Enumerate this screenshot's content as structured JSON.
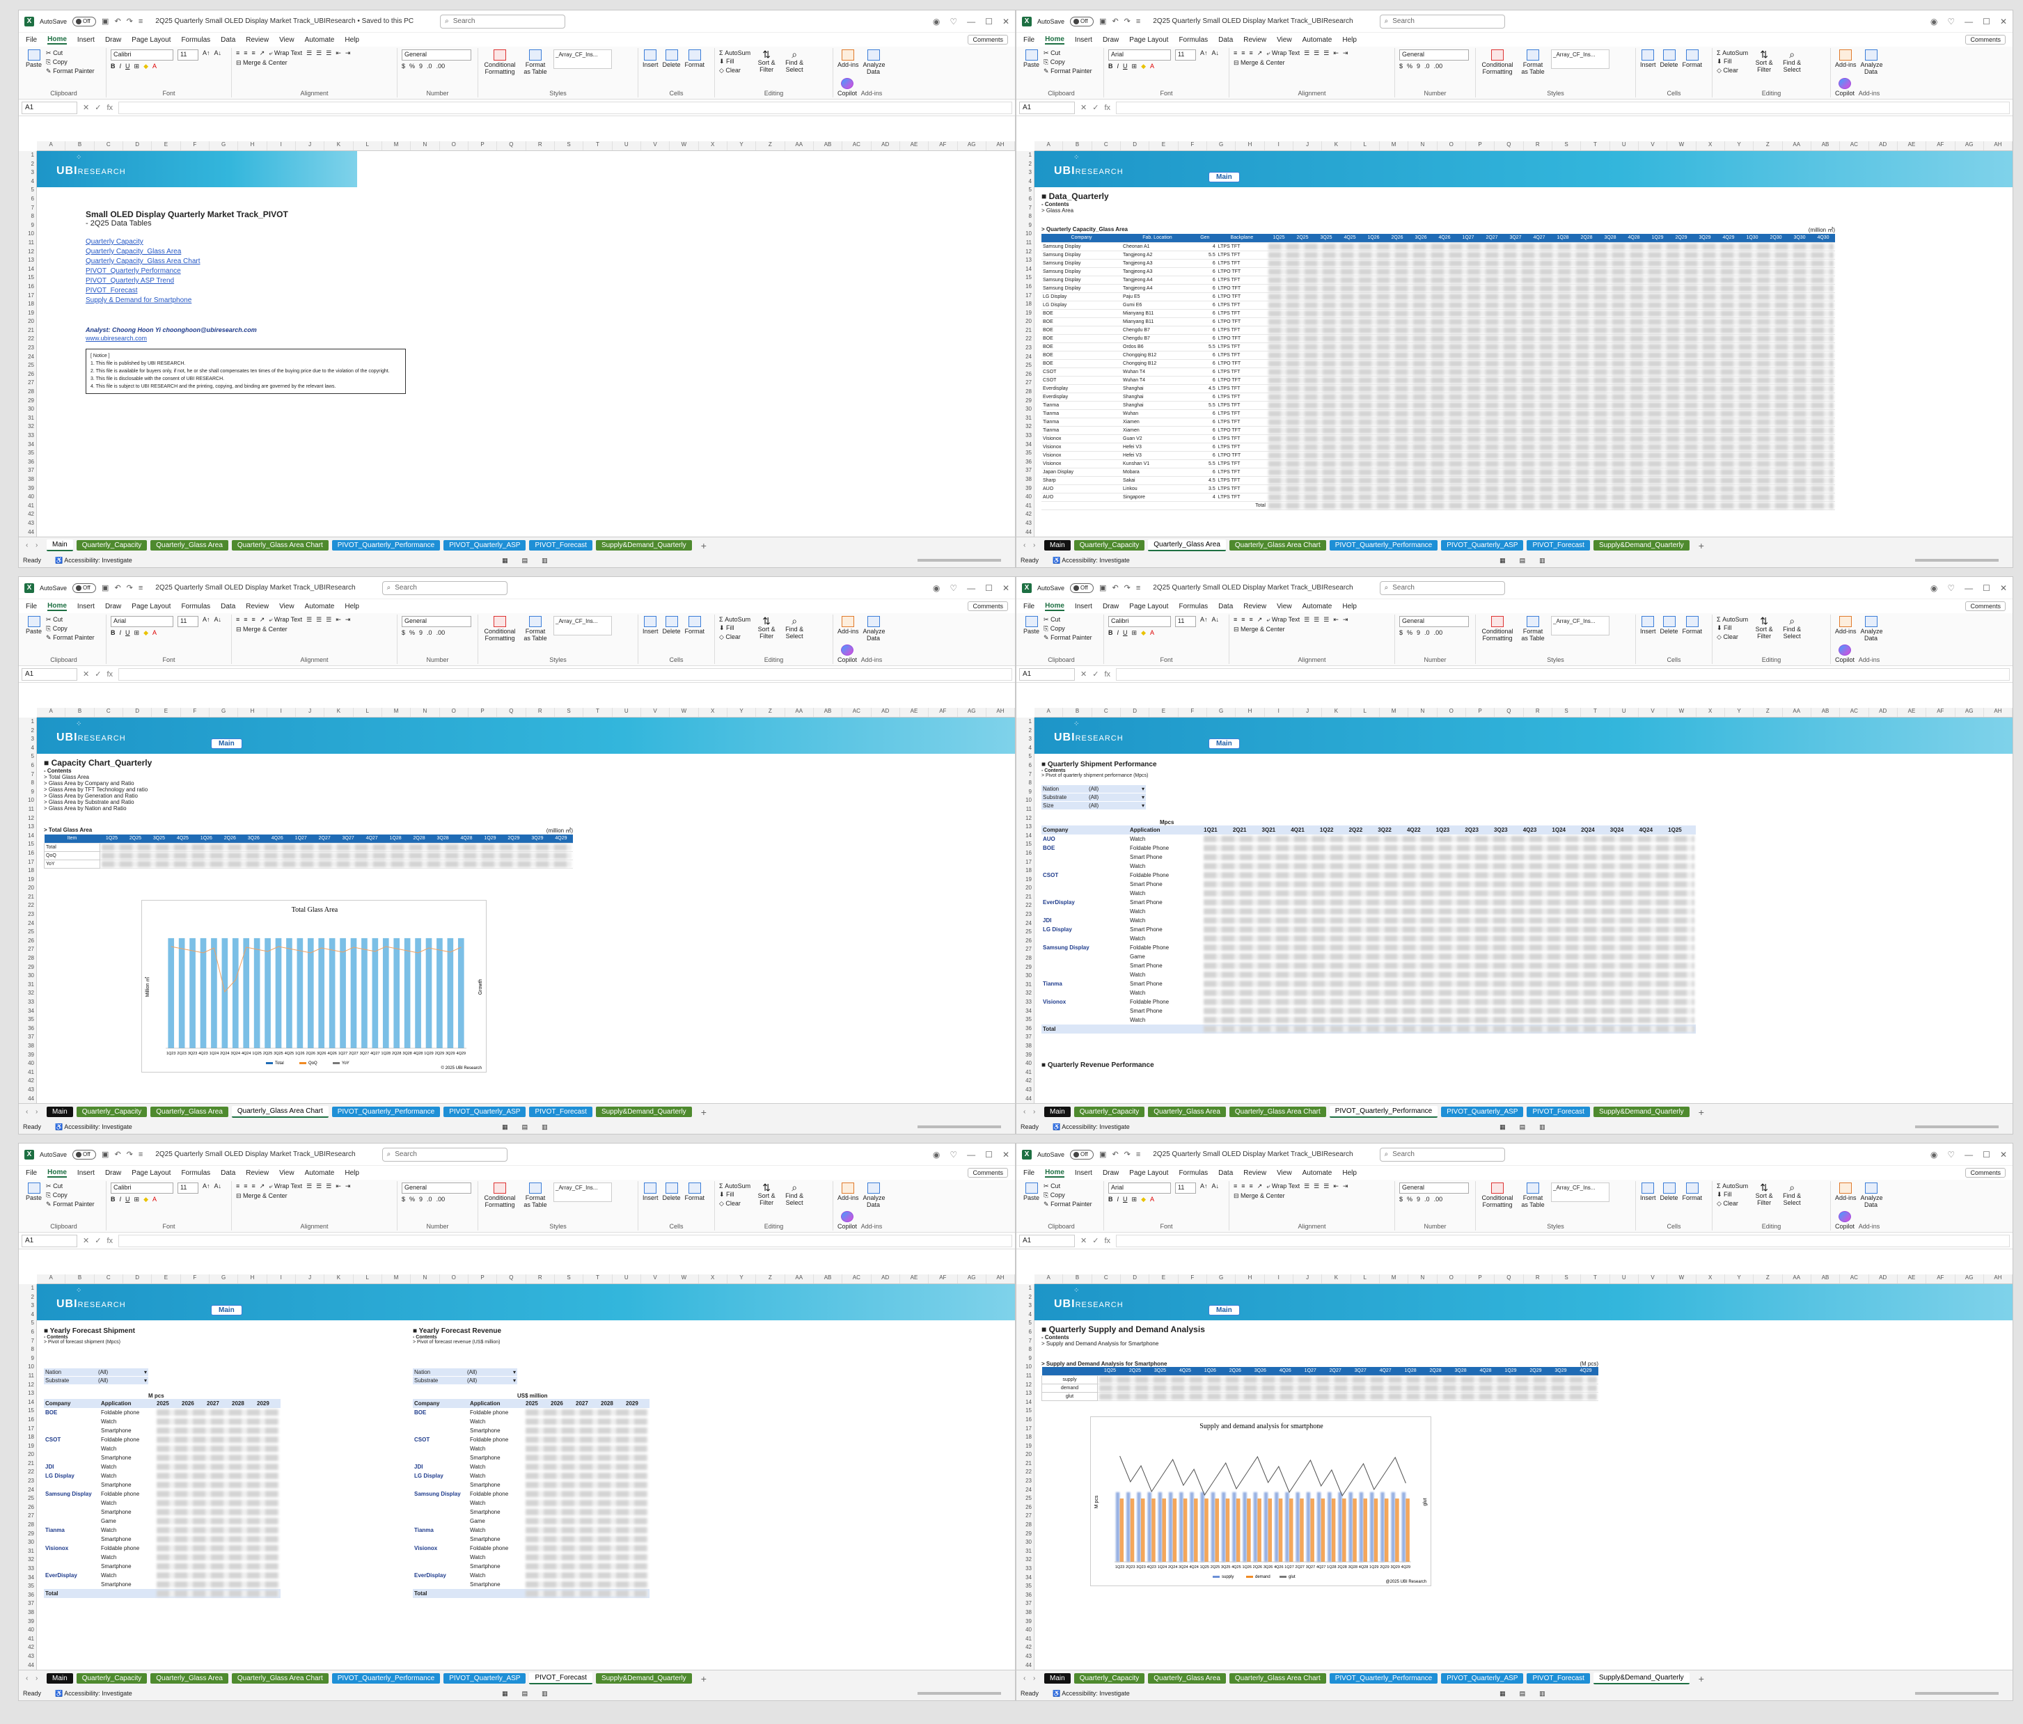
{
  "common": {
    "autosave": "AutoSave",
    "toggle": "Off",
    "search": "Search",
    "menu": [
      "File",
      "Home",
      "Insert",
      "Draw",
      "Page Layout",
      "Formulas",
      "Data",
      "Review",
      "View",
      "Automate",
      "Help"
    ],
    "comments": "Comments",
    "namebox": "A1",
    "fx": "fx",
    "ribbon": {
      "paste": "Paste",
      "cut": "Cut",
      "copy": "Copy",
      "format_painter": "Format Painter",
      "clipboard": "Clipboard",
      "font": "Font",
      "alignment": "Alignment",
      "number": "Number",
      "styles": "Styles",
      "cells": "Cells",
      "editing": "Editing",
      "addins": "Add-ins",
      "wrap": "Wrap Text",
      "merge": "Merge & Center",
      "general": "General",
      "cond": "Conditional Formatting",
      "fmt_table": "Format as Table",
      "array": "_Array_CF_Ins...",
      "insert": "Insert",
      "delete": "Delete",
      "format": "Format",
      "autosum": "AutoSum",
      "fill": "Fill",
      "clear": "Clear",
      "sort": "Sort & Filter",
      "find": "Find & Select",
      "addins_btn": "Add-ins",
      "analyze": "Analyze Data",
      "copilot": "Copilot"
    },
    "tabs": [
      "Main",
      "Quarterly_Capacity",
      "Quarterly_Glass Area",
      "Quarterly_Glass Area Chart",
      "PIVOT_Quarterly_Performance",
      "PIVOT_Quarterly_ASP",
      "PIVOT_Forecast",
      "Supply&Demand_Quarterly"
    ],
    "status": "Ready",
    "access": "Accessibility: Investigate",
    "logo": "UBI",
    "logo2": "RESEARCH",
    "mainbtn": "Main"
  },
  "windows": [
    {
      "title": "2Q25 Quarterly Small OLED Display Market Track_UBIResearch • Saved to this PC",
      "font": "Calibri",
      "size": "11",
      "active": 0
    },
    {
      "title": "2Q25 Quarterly Small OLED Display Market Track_UBIResearch",
      "font": "Arial",
      "size": "11",
      "active": 2
    },
    {
      "title": "2Q25 Quarterly Small OLED Display Market Track_UBIResearch",
      "font": "Arial",
      "size": "11",
      "active": 3
    },
    {
      "title": "2Q25 Quarterly Small OLED Display Market Track_UBIResearch",
      "font": "Calibri",
      "size": "11",
      "active": 4
    },
    {
      "title": "2Q25 Quarterly Small OLED Display Market Track_UBIResearch",
      "font": "Calibri",
      "size": "11",
      "active": 6
    },
    {
      "title": "2Q25 Quarterly Small OLED Display Market Track_UBIResearch",
      "font": "Arial",
      "size": "11",
      "active": 7
    }
  ],
  "main": {
    "title": "Small OLED Display Quarterly Market Track_PIVOT",
    "subtitle": "- 2Q25 Data Tables",
    "links": [
      "Quarterly Capacity",
      "Quarterly Capacity_Glass Area",
      "Quarterly Capacity_Glass Area Chart",
      "PIVOT_Quarterly Performance",
      "PIVOT_Quarterly ASP Trend",
      "PIVOT_Forecast",
      "Supply & Demand for Smartphone"
    ],
    "analyst": "Analyst: Choong Hoon Yi choonghoon@ubiresearch.com",
    "web": "www.ubiresearch.com",
    "notice": [
      "[ Notice ]",
      "1. This file is published by UBI RESEARCH.",
      "2. This file is available for buyers only, if not, he or she shall compensates ten times of the buying price due to the violation of the copyright.",
      "3. This file is disclosable with the consent of UBI RESEARCH.",
      "4. This file is subject to UBI RESEARCH and the printing, copying, and binding are governed by the relevant laws."
    ]
  },
  "glass": {
    "title": "■ Data_Quarterly",
    "contents": "- Contents",
    "item": "> Glass Area",
    "table_title": "> Quarterly Capacity_Glass Area",
    "unit": "(million ㎡)",
    "headers": [
      "Company",
      "Fab. Location",
      "Gen",
      "Backplane"
    ],
    "quarters": [
      "1Q25",
      "2Q25",
      "3Q25",
      "4Q25",
      "1Q26",
      "2Q26",
      "3Q26",
      "4Q26",
      "1Q27",
      "2Q27",
      "3Q27",
      "4Q27",
      "1Q28",
      "2Q28",
      "3Q28",
      "4Q28",
      "1Q29",
      "2Q29",
      "3Q29",
      "4Q29",
      "1Q30",
      "2Q30",
      "3Q30",
      "4Q30"
    ],
    "rows": [
      [
        "Samsung Display",
        "Cheonan A1",
        "4",
        "LTPS TFT"
      ],
      [
        "Samsung Display",
        "Tangjeong A2",
        "5.5",
        "LTPS TFT"
      ],
      [
        "Samsung Display",
        "Tangjeong A3",
        "6",
        "LTPS TFT"
      ],
      [
        "Samsung Display",
        "Tangjeong A3",
        "6",
        "LTPO TFT"
      ],
      [
        "Samsung Display",
        "Tangjeong A4",
        "6",
        "LTPS TFT"
      ],
      [
        "Samsung Display",
        "Tangjeong A4",
        "6",
        "LTPO TFT"
      ],
      [
        "LG Display",
        "Paju E5",
        "6",
        "LTPO TFT"
      ],
      [
        "LG Display",
        "Gumi E6",
        "6",
        "LTPS TFT"
      ],
      [
        "BOE",
        "Mianyang B11",
        "6",
        "LTPS TFT"
      ],
      [
        "BOE",
        "Mianyang B11",
        "6",
        "LTPO TFT"
      ],
      [
        "BOE",
        "Chengdu B7",
        "6",
        "LTPS TFT"
      ],
      [
        "BOE",
        "Chengdu B7",
        "6",
        "LTPO TFT"
      ],
      [
        "BOE",
        "Ordos B6",
        "5.5",
        "LTPS TFT"
      ],
      [
        "BOE",
        "Chongqing B12",
        "6",
        "LTPS TFT"
      ],
      [
        "BOE",
        "Chongqing B12",
        "6",
        "LTPO TFT"
      ],
      [
        "CSOT",
        "Wuhan T4",
        "6",
        "LTPS TFT"
      ],
      [
        "CSOT",
        "Wuhan T4",
        "6",
        "LTPO TFT"
      ],
      [
        "Everdisplay",
        "Shanghai",
        "4.5",
        "LTPS TFT"
      ],
      [
        "Everdisplay",
        "Shanghai",
        "6",
        "LTPS TFT"
      ],
      [
        "Tianma",
        "Shanghai",
        "5.5",
        "LTPS TFT"
      ],
      [
        "Tianma",
        "Wuhan",
        "6",
        "LTPS TFT"
      ],
      [
        "Tianma",
        "Xiamen",
        "6",
        "LTPS TFT"
      ],
      [
        "Tianma",
        "Xiamen",
        "6",
        "LTPO TFT"
      ],
      [
        "Visionox",
        "Guan V2",
        "6",
        "LTPS TFT"
      ],
      [
        "Visionox",
        "Hefei V3",
        "6",
        "LTPS TFT"
      ],
      [
        "Visionox",
        "Hefei V3",
        "6",
        "LTPO TFT"
      ],
      [
        "Visionox",
        "Kunshan V1",
        "5.5",
        "LTPS TFT"
      ],
      [
        "Japan Display",
        "Mobara",
        "6",
        "LTPS TFT"
      ],
      [
        "Sharp",
        "Sakai",
        "4.5",
        "LTPS TFT"
      ],
      [
        "AUO",
        "Linkou",
        "3.5",
        "LTPS TFT"
      ],
      [
        "AUO",
        "Singapore",
        "4",
        "LTPS TFT"
      ]
    ],
    "total": "Total"
  },
  "capchart": {
    "title": "■ Capacity Chart_Quarterly",
    "contents": "- Contents",
    "items": [
      "> Total Glass Area",
      "> Glass Area by Company and Ratio",
      "> Glass Area by TFT Technology and ratio",
      "> Glass Area by Generation and Ratio",
      "> Glass Area by Substrate and Ratio",
      "> Glass Area by Nation and Ratio"
    ],
    "table_title": "> Total Glass Area",
    "unit": "(million ㎡)",
    "rowlabels": [
      "Item",
      "Total",
      "QoQ",
      "YoY"
    ],
    "chart_title": "Total Glass Area",
    "ylabel": "Million ㎡",
    "y2label": "Growth",
    "legend": [
      "Total",
      "QoQ",
      "YoY"
    ],
    "copyright": "© 2025 UBI Research"
  },
  "perf": {
    "title": "■ Quarterly Shipment Performance",
    "contents": "- Contents",
    "item": "> Pivot of quarterly shipment performance (Mpcs)",
    "filters": [
      [
        "Nation",
        "(All)"
      ],
      [
        "Substrate",
        "(All)"
      ],
      [
        "Size",
        "(All)"
      ]
    ],
    "unit": "Mpcs",
    "headers": [
      "Company",
      "Application",
      "1Q21",
      "2Q21",
      "3Q21",
      "4Q21",
      "1Q22",
      "2Q22",
      "3Q22",
      "4Q22",
      "1Q23",
      "2Q23",
      "3Q23",
      "4Q23",
      "1Q24",
      "2Q24",
      "3Q24",
      "4Q24",
      "1Q25"
    ],
    "rows": [
      [
        "AUO",
        "Watch"
      ],
      [
        "BOE",
        "Foldable Phone"
      ],
      [
        "",
        "Smart Phone"
      ],
      [
        "",
        "Watch"
      ],
      [
        "CSOT",
        "Foldable Phone"
      ],
      [
        "",
        "Smart Phone"
      ],
      [
        "",
        "Watch"
      ],
      [
        "EverDisplay",
        "Smart Phone"
      ],
      [
        "",
        "Watch"
      ],
      [
        "JDI",
        "Watch"
      ],
      [
        "LG Display",
        "Smart Phone"
      ],
      [
        "",
        "Watch"
      ],
      [
        "Samsung Display",
        "Foldable Phone"
      ],
      [
        "",
        "Game"
      ],
      [
        "",
        "Smart Phone"
      ],
      [
        "",
        "Watch"
      ],
      [
        "Tianma",
        "Smart Phone"
      ],
      [
        "",
        "Watch"
      ],
      [
        "Visionox",
        "Foldable Phone"
      ],
      [
        "",
        "Smart Phone"
      ],
      [
        "",
        "Watch"
      ]
    ],
    "total": "Total",
    "next": "■ Quarterly Revenue Performance"
  },
  "forecast": {
    "ship_title": "■ Yearly Forecast Shipment",
    "rev_title": "■ Yearly Forecast Revenue",
    "contents": "- Contents",
    "ship_item": "> Pivot of forecast shipment (Mpcs)",
    "rev_item": "> Pivot of forecast revenue (US$ million)",
    "filters": [
      [
        "Nation",
        "(All)"
      ],
      [
        "Substrate",
        "(All)"
      ]
    ],
    "ship_unit": "M pcs",
    "rev_unit": "US$ million",
    "headers": [
      "Company",
      "Application",
      "2025",
      "2026",
      "2027",
      "2028",
      "2029"
    ],
    "rows": [
      [
        "BOE",
        "Foldable phone"
      ],
      [
        "",
        "Watch"
      ],
      [
        "",
        "Smartphone"
      ],
      [
        "CSOT",
        "Foldable phone"
      ],
      [
        "",
        "Watch"
      ],
      [
        "",
        "Smartphone"
      ],
      [
        "JDI",
        "Watch"
      ],
      [
        "LG Display",
        "Watch"
      ],
      [
        "",
        "Smartphone"
      ],
      [
        "Samsung Display",
        "Foldable phone"
      ],
      [
        "",
        "Watch"
      ],
      [
        "",
        "Smartphone"
      ],
      [
        "",
        "Game"
      ],
      [
        "Tianma",
        "Watch"
      ],
      [
        "",
        "Smartphone"
      ],
      [
        "Visionox",
        "Foldable phone"
      ],
      [
        "",
        "Watch"
      ],
      [
        "",
        "Smartphone"
      ],
      [
        "EverDisplay",
        "Watch"
      ],
      [
        "",
        "Smartphone"
      ]
    ],
    "total": "Total"
  },
  "supply": {
    "title": "■ Quarterly Supply and Demand Analysis",
    "contents": "- Contents",
    "item": "> Supply and Demand Analysis for Smartphone",
    "table_title": "> Supply and Demand Analysis for Smartphone",
    "unit": "(M pcs)",
    "rowlabels": [
      "supply",
      "demand",
      "glut"
    ],
    "chart_title": "Supply and demand analysis for smartphone",
    "ylabel": "M pcs",
    "y2label": "glut",
    "legend": [
      "supply",
      "demand",
      "glut"
    ],
    "copyright": "@2025 UBI Research"
  },
  "chart_quarters": [
    "1Q23",
    "2Q23",
    "3Q23",
    "4Q23",
    "1Q24",
    "2Q24",
    "3Q24",
    "4Q24",
    "1Q25",
    "2Q25",
    "3Q25",
    "4Q25",
    "1Q26",
    "2Q26",
    "3Q26",
    "4Q26",
    "1Q27",
    "2Q27",
    "3Q27",
    "4Q27",
    "1Q28",
    "2Q28",
    "3Q28",
    "4Q28",
    "1Q29",
    "2Q29",
    "3Q29",
    "4Q29"
  ],
  "colors": {
    "excel": "#1d6f42",
    "banner": "#2aa9d6",
    "bar": "#5aafe0",
    "orange": "#f08a24",
    "tab_green": "#4e8a2e",
    "tab_blue": "#1e8fd6"
  }
}
